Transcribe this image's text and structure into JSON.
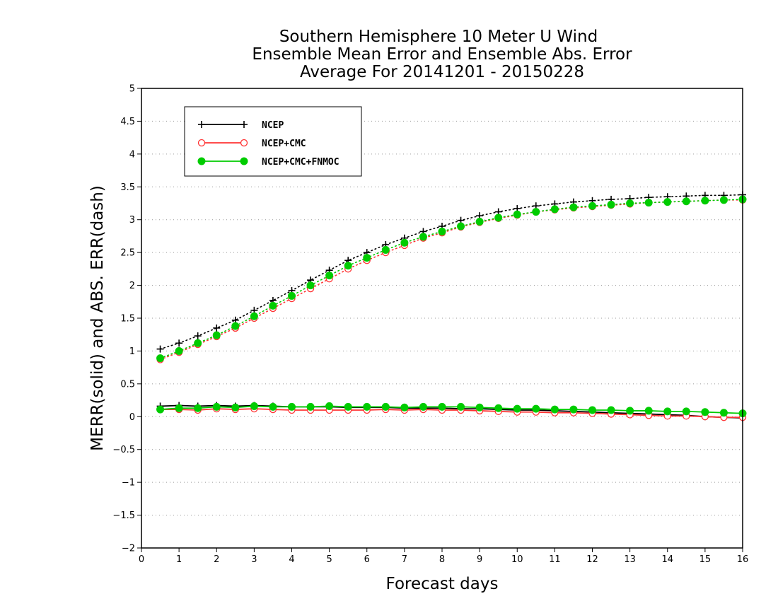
{
  "chart_data": {
    "type": "line",
    "title": [
      "Southern Hemisphere 10 Meter U Wind",
      "Ensemble Mean Error and Ensemble Abs. Error",
      "Average For 20141201 - 20150228"
    ],
    "xlabel": "Forecast days",
    "ylabel": "MERR(solid) and ABS. ERR(dash)",
    "xlim": [
      0,
      16
    ],
    "ylim": [
      -2,
      5
    ],
    "xticks": [
      0,
      1,
      2,
      3,
      4,
      5,
      6,
      7,
      8,
      9,
      10,
      11,
      12,
      13,
      14,
      15,
      16
    ],
    "yticks": [
      -2,
      -1.5,
      -1,
      -0.5,
      0,
      0.5,
      1,
      1.5,
      2,
      2.5,
      3,
      3.5,
      4,
      4.5,
      5
    ],
    "xtick_labels": [
      "0",
      "1",
      "2",
      "3",
      "4",
      "5",
      "6",
      "7",
      "8",
      "9",
      "10",
      "11",
      "12",
      "13",
      "14",
      "15",
      "16"
    ],
    "ytick_labels": [
      "−2",
      "−1.5",
      "−1",
      "−0.5",
      "0",
      "0.5",
      "1",
      "1.5",
      "2",
      "2.5",
      "3",
      "3.5",
      "4",
      "4.5",
      "5"
    ],
    "grid": "horizontal dotted",
    "legend_position": "top-left",
    "x": [
      0.5,
      1,
      1.5,
      2,
      2.5,
      3,
      3.5,
      4,
      4.5,
      5,
      5.5,
      6,
      6.5,
      7,
      7.5,
      8,
      8.5,
      9,
      9.5,
      10,
      10.5,
      11,
      11.5,
      12,
      12.5,
      13,
      13.5,
      14,
      14.5,
      15,
      15.5,
      16
    ],
    "series": [
      {
        "name": "NCEP",
        "color": "#000000",
        "marker": "plus",
        "mean_error": [
          0.16,
          0.17,
          0.16,
          0.17,
          0.16,
          0.17,
          0.16,
          0.15,
          0.15,
          0.15,
          0.14,
          0.14,
          0.14,
          0.13,
          0.13,
          0.13,
          0.12,
          0.12,
          0.11,
          0.1,
          0.1,
          0.09,
          0.08,
          0.07,
          0.06,
          0.05,
          0.04,
          0.03,
          0.02,
          0.0,
          -0.01,
          -0.02
        ],
        "abs_error": [
          1.03,
          1.12,
          1.23,
          1.35,
          1.47,
          1.62,
          1.77,
          1.92,
          2.08,
          2.23,
          2.38,
          2.5,
          2.62,
          2.72,
          2.82,
          2.9,
          2.99,
          3.06,
          3.12,
          3.17,
          3.21,
          3.24,
          3.27,
          3.29,
          3.31,
          3.32,
          3.34,
          3.35,
          3.36,
          3.37,
          3.37,
          3.38
        ]
      },
      {
        "name": "NCEP+CMC",
        "color": "#ff3333",
        "marker": "open-circle",
        "mean_error": [
          0.11,
          0.11,
          0.1,
          0.12,
          0.11,
          0.12,
          0.11,
          0.1,
          0.1,
          0.1,
          0.1,
          0.1,
          0.11,
          0.1,
          0.11,
          0.1,
          0.1,
          0.09,
          0.08,
          0.07,
          0.07,
          0.06,
          0.06,
          0.05,
          0.04,
          0.03,
          0.02,
          0.01,
          0.01,
          0.0,
          -0.01,
          -0.01
        ],
        "abs_error": [
          0.87,
          0.98,
          1.1,
          1.22,
          1.35,
          1.5,
          1.65,
          1.8,
          1.95,
          2.1,
          2.25,
          2.38,
          2.5,
          2.61,
          2.72,
          2.8,
          2.89,
          2.96,
          3.02,
          3.07,
          3.12,
          3.15,
          3.18,
          3.2,
          3.22,
          3.24,
          3.26,
          3.27,
          3.28,
          3.29,
          3.3,
          3.3
        ]
      },
      {
        "name": "NCEP+CMC+FNMOC",
        "color": "#00cc00",
        "marker": "filled-circle",
        "mean_error": [
          0.11,
          0.13,
          0.13,
          0.15,
          0.14,
          0.16,
          0.15,
          0.15,
          0.15,
          0.16,
          0.15,
          0.15,
          0.15,
          0.14,
          0.15,
          0.15,
          0.15,
          0.14,
          0.13,
          0.12,
          0.12,
          0.11,
          0.11,
          0.1,
          0.1,
          0.09,
          0.09,
          0.08,
          0.08,
          0.07,
          0.06,
          0.05
        ],
        "abs_error": [
          0.89,
          1.0,
          1.12,
          1.24,
          1.38,
          1.53,
          1.69,
          1.84,
          2.0,
          2.15,
          2.3,
          2.42,
          2.54,
          2.65,
          2.74,
          2.82,
          2.9,
          2.97,
          3.03,
          3.08,
          3.12,
          3.16,
          3.19,
          3.21,
          3.23,
          3.25,
          3.26,
          3.27,
          3.28,
          3.29,
          3.3,
          3.31
        ]
      }
    ]
  }
}
